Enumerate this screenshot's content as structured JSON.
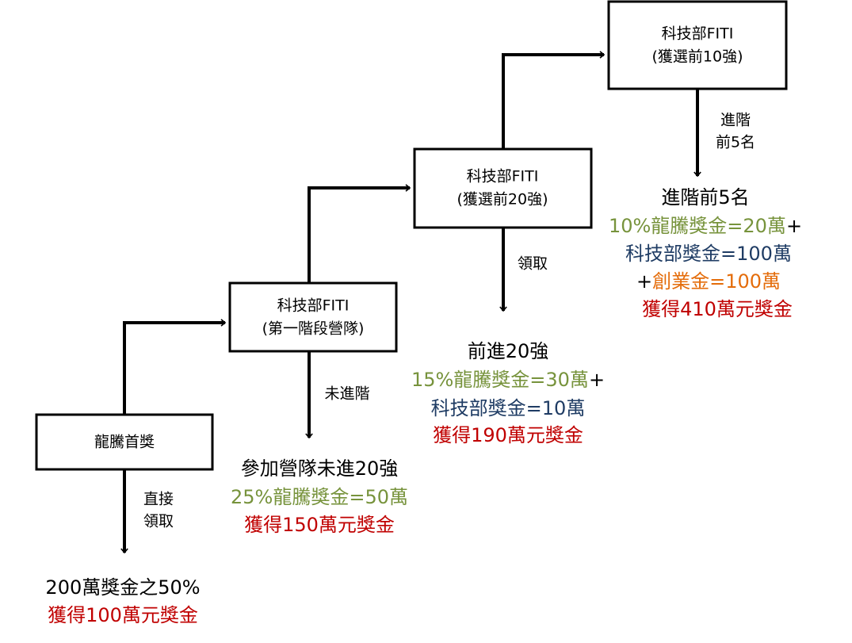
{
  "nodes": [
    {
      "lines": [
        "龍騰首獎"
      ]
    },
    {
      "lines": [
        "科技部FITI",
        "(第一階段營隊)"
      ]
    },
    {
      "lines": [
        "科技部FITI",
        "(獲選前20強)"
      ]
    },
    {
      "lines": [
        "科技部FITI",
        "(獲選前10強)"
      ]
    }
  ],
  "edges": [
    {
      "lines": [
        "直接",
        "領取"
      ]
    },
    {
      "lines": [
        "未進階"
      ]
    },
    {
      "lines": [
        "領取"
      ]
    },
    {
      "lines": [
        "進階",
        "前5名"
      ]
    }
  ],
  "outcomes": [
    {
      "lines": [
        [
          "200萬獎金之50%"
        ],
        [
          "獲得100萬元獎金"
        ]
      ]
    },
    {
      "lines": [
        [
          "參加營隊未進20強"
        ],
        [
          "25%龍騰獎金=50萬"
        ],
        [
          "獲得150萬元獎金"
        ]
      ]
    },
    {
      "lines": [
        [
          "前進20強"
        ],
        [
          "15%龍騰獎金=30萬",
          "+"
        ],
        [
          "科技部獎金=10萬"
        ],
        [
          "獲得190萬元獎金"
        ]
      ]
    },
    {
      "lines": [
        [
          "進階前5名"
        ],
        [
          "10%龍騰獎金=20萬",
          "+"
        ],
        [
          "科技部獎金=100萬"
        ],
        [
          "+",
          "創業金=100萬"
        ],
        [
          "獲得410萬元獎金"
        ]
      ]
    }
  ]
}
